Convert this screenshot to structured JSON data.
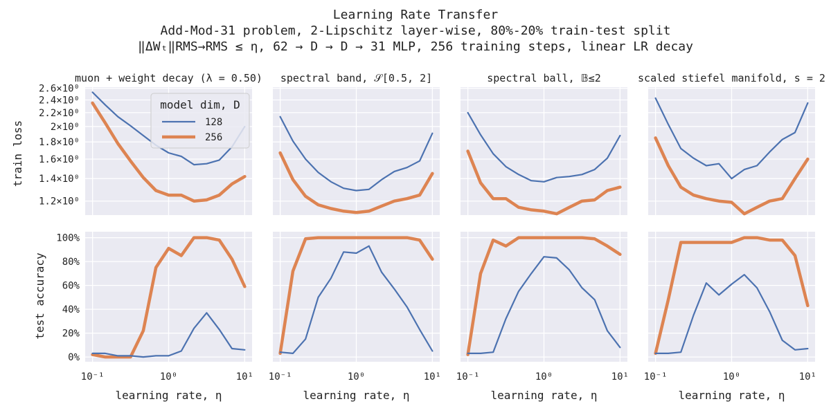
{
  "figure": {
    "title_lines": [
      "Learning Rate Transfer",
      "Add-Mod-31 problem, 2-Lipschitz layer-wise, 80%-20% train-test split",
      "‖ΔWₜ‖RMS→RMS ≤ η, 62 → D → D → 31 MLP, 256 training steps, linear LR decay"
    ],
    "colors": {
      "series_128": "#4c72b0",
      "series_256": "#dd8452",
      "axes_bg": "#eaeaf2",
      "grid": "#ffffff",
      "text": "#222222"
    }
  },
  "legend": {
    "title": "model dim, D",
    "entries": [
      "128",
      "256"
    ]
  },
  "row_labels": {
    "train": "train loss",
    "test": "test accuracy"
  },
  "chart_data": {
    "type": "line",
    "x": [
      0.1,
      0.147,
      0.215,
      0.316,
      0.464,
      0.681,
      1.0,
      1.468,
      2.154,
      3.162,
      4.642,
      6.813,
      10.0
    ],
    "xlabel": "learning rate, η",
    "xscale": "log",
    "xticks": [
      {
        "value": 0.1,
        "label": "10⁻¹"
      },
      {
        "value": 1.0,
        "label": "10⁰"
      },
      {
        "value": 10.0,
        "label": "10¹"
      }
    ],
    "train_yscale": "log",
    "train_ylim": [
      1.09,
      2.62
    ],
    "train_ylabel": "train loss",
    "train_yticks": [
      {
        "value": 1.2,
        "label": "1.2×10⁰"
      },
      {
        "value": 1.4,
        "label": "1.4×10⁰"
      },
      {
        "value": 1.6,
        "label": "1.6×10⁰"
      },
      {
        "value": 1.8,
        "label": "1.8×10⁰"
      },
      {
        "value": 2.0,
        "label": "2×10⁰"
      },
      {
        "value": 2.2,
        "label": "2.2×10⁰"
      },
      {
        "value": 2.4,
        "label": "2.4×10⁰"
      },
      {
        "value": 2.6,
        "label": "2.6×10⁰"
      }
    ],
    "test_ylim": [
      -4,
      105
    ],
    "test_ylabel": "test accuracy",
    "test_yticks": [
      {
        "value": 0,
        "label": "0%"
      },
      {
        "value": 20,
        "label": "20%"
      },
      {
        "value": 40,
        "label": "40%"
      },
      {
        "value": 60,
        "label": "60%"
      },
      {
        "value": 80,
        "label": "80%"
      },
      {
        "value": 100,
        "label": "100%"
      }
    ],
    "panels": [
      {
        "title": "muon + weight decay (λ = 0.50)",
        "train": {
          "128": [
            2.53,
            2.32,
            2.14,
            2.01,
            1.88,
            1.76,
            1.67,
            1.63,
            1.54,
            1.55,
            1.59,
            1.74,
            2.0
          ],
          "256": [
            2.35,
            2.05,
            1.78,
            1.58,
            1.41,
            1.29,
            1.25,
            1.25,
            1.2,
            1.21,
            1.25,
            1.35,
            1.42
          ]
        },
        "test": {
          "128": [
            3,
            3,
            1,
            1,
            0,
            1,
            1,
            5,
            24,
            37,
            23,
            7,
            6
          ],
          "256": [
            2,
            0,
            0,
            0,
            22,
            75,
            91,
            85,
            100,
            100,
            98,
            82,
            59
          ]
        }
      },
      {
        "title": "spectral band, 𝒮[0.5, 2]",
        "train": {
          "128": [
            2.14,
            1.81,
            1.6,
            1.46,
            1.37,
            1.31,
            1.29,
            1.3,
            1.39,
            1.47,
            1.51,
            1.58,
            1.91
          ],
          "256": [
            1.67,
            1.39,
            1.24,
            1.17,
            1.14,
            1.12,
            1.11,
            1.12,
            1.16,
            1.2,
            1.22,
            1.25,
            1.45
          ]
        },
        "test": {
          "128": [
            4,
            3,
            15,
            50,
            66,
            88,
            87,
            93,
            71,
            57,
            42,
            23,
            5
          ],
          "256": [
            3,
            72,
            99,
            100,
            100,
            100,
            100,
            100,
            100,
            100,
            100,
            98,
            82
          ]
        }
      },
      {
        "title": "spectral ball, 𝔹≤2",
        "train": {
          "128": [
            2.2,
            1.89,
            1.66,
            1.52,
            1.44,
            1.38,
            1.37,
            1.41,
            1.42,
            1.44,
            1.49,
            1.61,
            1.88
          ],
          "256": [
            1.69,
            1.36,
            1.22,
            1.22,
            1.15,
            1.13,
            1.12,
            1.1,
            1.15,
            1.2,
            1.21,
            1.29,
            1.32
          ]
        },
        "test": {
          "128": [
            3,
            3,
            4,
            32,
            55,
            70,
            84,
            83,
            73,
            58,
            48,
            22,
            8
          ],
          "256": [
            2,
            70,
            98,
            93,
            100,
            100,
            100,
            100,
            100,
            100,
            99,
            93,
            86
          ]
        }
      },
      {
        "title": "scaled stiefel manifold, s = 2",
        "train": {
          "128": [
            2.43,
            2.03,
            1.72,
            1.61,
            1.53,
            1.55,
            1.4,
            1.49,
            1.53,
            1.68,
            1.83,
            1.92,
            2.35
          ],
          "256": [
            1.85,
            1.53,
            1.32,
            1.25,
            1.22,
            1.2,
            1.19,
            1.1,
            1.15,
            1.2,
            1.22,
            1.4,
            1.6
          ]
        },
        "test": {
          "128": [
            3,
            3,
            4,
            35,
            62,
            52,
            61,
            69,
            58,
            38,
            14,
            6,
            7
          ],
          "256": [
            3,
            48,
            96,
            96,
            96,
            96,
            96,
            100,
            100,
            98,
            98,
            85,
            43
          ]
        }
      }
    ]
  }
}
